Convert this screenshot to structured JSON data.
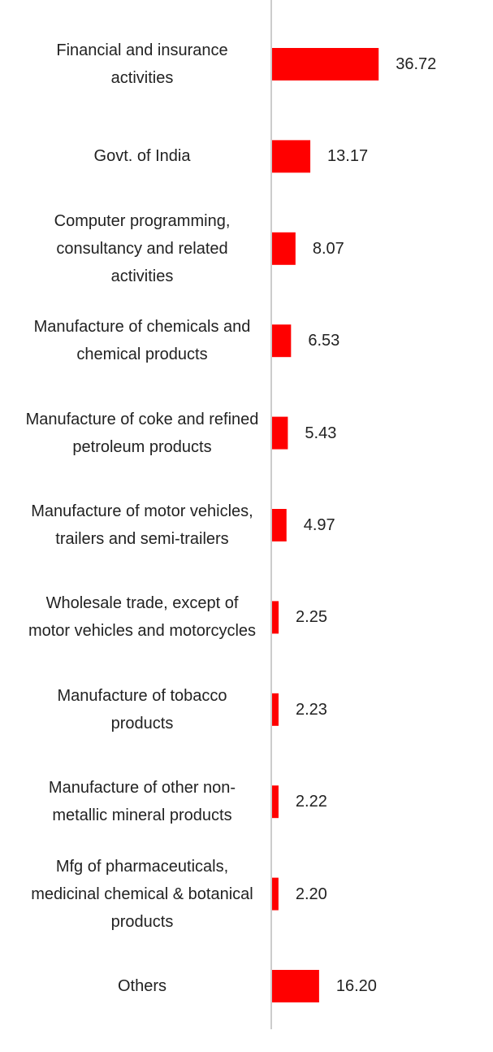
{
  "chart_data": {
    "type": "bar",
    "orientation": "horizontal",
    "categories": [
      "Financial and insurance activities",
      "Govt. of India",
      "Computer programming, consultancy and related activities",
      "Manufacture of chemicals and chemical products",
      "Manufacture of coke and refined petroleum products",
      "Manufacture of motor vehicles, trailers and semi-trailers",
      "Wholesale trade, except of motor vehicles and motorcycles",
      "Manufacture of tobacco products",
      "Manufacture of other non-metallic mineral products",
      "Mfg of pharmaceuticals, medicinal chemical & botanical products",
      "Others"
    ],
    "values": [
      36.72,
      13.17,
      8.07,
      6.53,
      5.43,
      4.97,
      2.25,
      2.23,
      2.22,
      2.2,
      16.2
    ],
    "value_labels": [
      "36.72",
      "13.17",
      "8.07",
      "6.53",
      "5.43",
      "4.97",
      "2.25",
      "2.23",
      "2.22",
      "2.20",
      "16.20"
    ],
    "color": "#ff0000",
    "xlim": [
      0,
      75
    ]
  }
}
